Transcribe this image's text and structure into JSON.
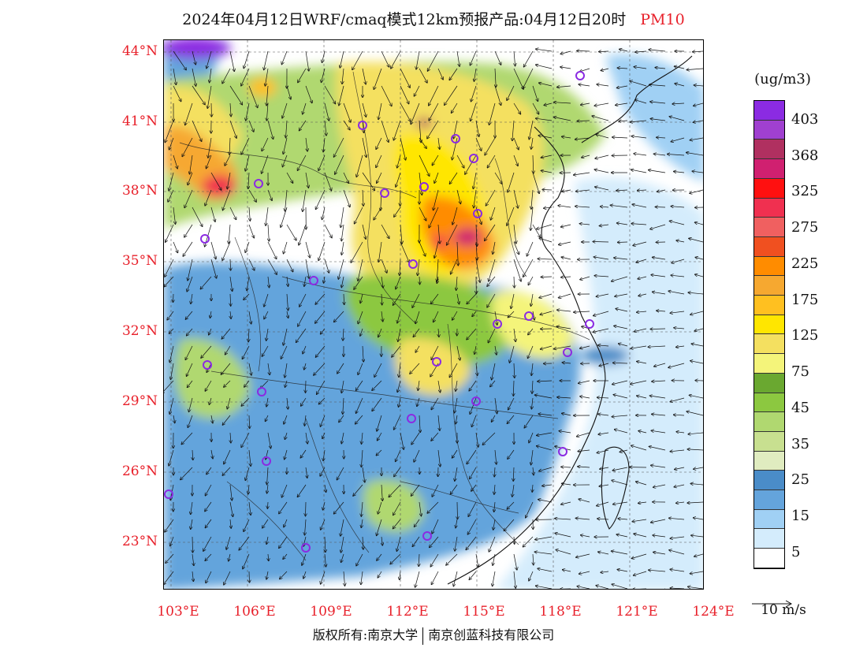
{
  "title": {
    "main": "2024年04月12日WRF/cmaq模式12km预报产品:04月12日20时",
    "pollutant": "PM10",
    "pollutant_color": "#e8202a"
  },
  "axes": {
    "lat_labels": [
      "44°N",
      "41°N",
      "38°N",
      "35°N",
      "32°N",
      "29°N",
      "26°N",
      "23°N"
    ],
    "lon_labels": [
      "103°E",
      "106°E",
      "109°E",
      "112°E",
      "115°E",
      "118°E",
      "121°E",
      "124°E"
    ],
    "label_color": "#e8202a"
  },
  "legend": {
    "unit": "(ug/m3)",
    "colors": [
      "#8b2be2",
      "#a040d0",
      "#b03060",
      "#d02070",
      "#ff1010",
      "#f03050",
      "#f06060",
      "#f05020",
      "#ff8c00",
      "#f6a830",
      "#ffc020",
      "#ffe600",
      "#f4e060",
      "#f4f47a",
      "#6aa830",
      "#8cc840",
      "#b0d870",
      "#c8e090",
      "#e0ecc0",
      "#4a8cc8",
      "#64a4dc",
      "#a0d0f4",
      "#d4ecfc",
      "#ffffff"
    ],
    "labels": [
      "403",
      "368",
      "325",
      "275",
      "225",
      "175",
      "125",
      "75",
      "45",
      "35",
      "25",
      "15",
      "5"
    ]
  },
  "wind_reference": {
    "label": "10 m/s"
  },
  "copyright": {
    "left": "版权所有:南京大学",
    "right": "南京创蓝科技有限公司"
  },
  "map": {
    "region": "East China",
    "lat_range": [
      21,
      44.5
    ],
    "lon_range": [
      102.8,
      124
    ],
    "city_marker_color": "#8b2be2"
  }
}
